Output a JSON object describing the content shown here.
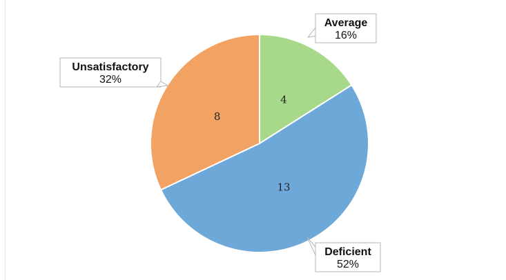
{
  "chart_data": {
    "type": "pie",
    "slices": [
      {
        "label": "Average",
        "value": 4,
        "percent_label": "16%",
        "color": "#a8d98a"
      },
      {
        "label": "Deficient",
        "value": 13,
        "percent_label": "52%",
        "color": "#6ea8d9"
      },
      {
        "label": "Unsatisfactory",
        "value": 8,
        "percent_label": "32%",
        "color": "#f2a262"
      }
    ],
    "start": "12 o'clock",
    "direction": "clockwise",
    "legend": "none"
  }
}
